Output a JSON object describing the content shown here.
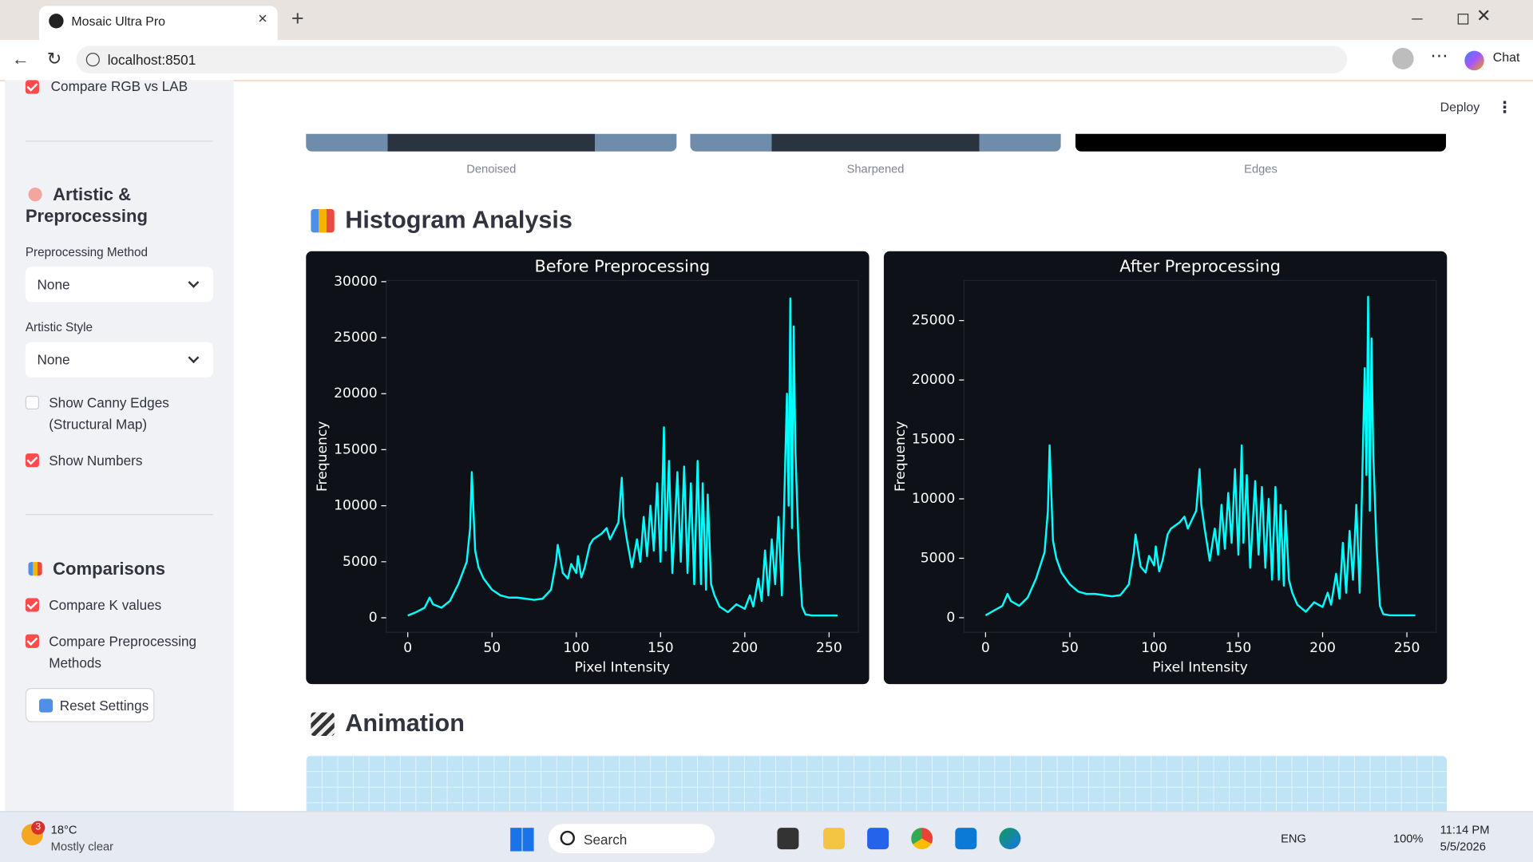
{
  "browser": {
    "tab_title": "Mosaic Ultra Pro",
    "url": "localhost:8501",
    "chat": "Chat"
  },
  "app": {
    "deploy": "Deploy"
  },
  "sidebar": {
    "compare_rgb_lab": {
      "label": "Compare RGB vs LAB",
      "checked": true
    },
    "artistic_heading": "Artistic & Preprocessing",
    "preprocessing_label": "Preprocessing Method",
    "preprocessing_value": "None",
    "artistic_label": "Artistic Style",
    "artistic_value": "None",
    "canny": {
      "label": "Show Canny Edges (Structural Map)",
      "checked": false
    },
    "show_numbers": {
      "label": "Show Numbers",
      "checked": true
    },
    "comparisons_heading": "Comparisons",
    "compare_k": {
      "label": "Compare K values",
      "checked": true
    },
    "compare_methods": {
      "label": "Compare Preprocessing Methods",
      "checked": true
    },
    "reset": "Reset Settings"
  },
  "main": {
    "image_captions": [
      "Denoised",
      "Sharpened",
      "Edges"
    ],
    "histogram_heading": "Histogram Analysis",
    "animation_heading": "Animation"
  },
  "charts": [
    {
      "type": "line",
      "title": "Before Preprocessing",
      "xlabel": "Pixel Intensity",
      "ylabel": "Frequency",
      "color": "#00ffff",
      "x": [
        0,
        5,
        10,
        13,
        15,
        20,
        25,
        30,
        35,
        37,
        38,
        40,
        42,
        45,
        50,
        55,
        60,
        65,
        70,
        75,
        80,
        85,
        88,
        89,
        92,
        95,
        97,
        100,
        101,
        103,
        105,
        108,
        110,
        115,
        118,
        120,
        125,
        127,
        128,
        130,
        133,
        136,
        138,
        140,
        142,
        144,
        146,
        148,
        150,
        152,
        153,
        155,
        157,
        160,
        162,
        164,
        166,
        168,
        170,
        172,
        174,
        175,
        177,
        178,
        180,
        182,
        185,
        190,
        195,
        200,
        203,
        205,
        208,
        210,
        212,
        214,
        216,
        218,
        220,
        222,
        225,
        226,
        227,
        228,
        229,
        230,
        232,
        234,
        236,
        240,
        245,
        255
      ],
      "values": [
        200,
        500,
        900,
        1800,
        1200,
        900,
        1500,
        3000,
        5000,
        8000,
        13000,
        6000,
        4500,
        3500,
        2500,
        2000,
        1800,
        1800,
        1700,
        1600,
        1700,
        2500,
        5000,
        6500,
        4000,
        3500,
        4800,
        4000,
        5500,
        3600,
        4500,
        6500,
        7000,
        7500,
        8000,
        7000,
        8500,
        12500,
        9000,
        7000,
        4500,
        7000,
        5000,
        9000,
        5500,
        10000,
        6000,
        12000,
        5000,
        17000,
        6000,
        14000,
        4000,
        13000,
        5000,
        13500,
        4000,
        12000,
        3000,
        14000,
        3000,
        12000,
        2500,
        11000,
        3000,
        2000,
        1000,
        500,
        1200,
        800,
        2000,
        1000,
        3500,
        1500,
        6000,
        2000,
        7000,
        3000,
        9000,
        2000,
        20000,
        10000,
        28500,
        8000,
        26000,
        15000,
        6000,
        1000,
        300,
        200,
        200,
        200
      ],
      "xlim": [
        -12.8,
        267.4
      ],
      "ylim": [
        -1300,
        30100
      ],
      "xticks": [
        0,
        50,
        100,
        150,
        200,
        250
      ],
      "yticks": [
        0,
        5000,
        10000,
        15000,
        20000,
        25000,
        30000
      ]
    },
    {
      "type": "line",
      "title": "After Preprocessing",
      "xlabel": "Pixel Intensity",
      "ylabel": "Frequency",
      "color": "#00ffff",
      "x": [
        0,
        5,
        10,
        13,
        15,
        20,
        25,
        30,
        35,
        37,
        38,
        40,
        42,
        45,
        50,
        55,
        60,
        65,
        70,
        75,
        80,
        85,
        88,
        89,
        92,
        95,
        97,
        100,
        101,
        103,
        105,
        108,
        110,
        115,
        118,
        120,
        125,
        127,
        128,
        130,
        133,
        136,
        138,
        140,
        142,
        144,
        146,
        148,
        150,
        152,
        153,
        155,
        157,
        160,
        162,
        164,
        166,
        168,
        170,
        172,
        174,
        175,
        177,
        178,
        180,
        182,
        185,
        190,
        195,
        200,
        203,
        205,
        208,
        210,
        212,
        214,
        216,
        218,
        220,
        222,
        225,
        226,
        227,
        228,
        229,
        230,
        232,
        234,
        236,
        240,
        245,
        255
      ],
      "values": [
        200,
        600,
        1000,
        2000,
        1400,
        1000,
        1700,
        3300,
        5500,
        9000,
        14500,
        6500,
        5000,
        3800,
        2800,
        2200,
        2000,
        2000,
        1900,
        1800,
        1900,
        2800,
        5500,
        7000,
        4300,
        3800,
        5200,
        4400,
        6000,
        3900,
        4800,
        7000,
        7500,
        8000,
        8500,
        7500,
        9000,
        12500,
        9500,
        7500,
        4800,
        7500,
        5300,
        9500,
        5800,
        10500,
        6300,
        12500,
        5300,
        14500,
        6300,
        12000,
        4200,
        11500,
        5300,
        11000,
        4200,
        10000,
        3200,
        11000,
        3200,
        9500,
        2700,
        9000,
        3200,
        2100,
        1100,
        500,
        1300,
        900,
        2100,
        1100,
        3700,
        1600,
        6300,
        2100,
        7300,
        3200,
        9500,
        2100,
        21000,
        12000,
        27000,
        9000,
        23500,
        14000,
        6000,
        1000,
        300,
        200,
        200,
        200
      ],
      "xlim": [
        -12.8,
        267.4
      ],
      "ylim": [
        -1230,
        28370
      ],
      "xticks": [
        0,
        50,
        100,
        150,
        200,
        250
      ],
      "yticks": [
        0,
        5000,
        10000,
        15000,
        20000,
        25000
      ]
    }
  ],
  "taskbar": {
    "badge": "3",
    "temperature": "18°C",
    "weather": "Mostly clear",
    "search": "Search",
    "language": "ENG",
    "battery": "100%",
    "time": "11:14 PM",
    "date": "5/5/2026"
  }
}
